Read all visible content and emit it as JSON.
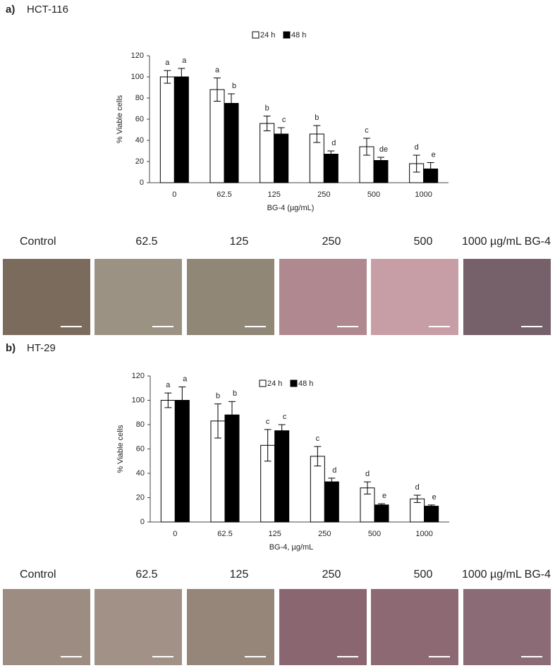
{
  "panels": [
    {
      "label": "a)",
      "title": "HCT-116",
      "captions": [
        "Control",
        "62.5",
        "125",
        "250",
        "500",
        "1000 µg/mL BG-4"
      ]
    },
    {
      "label": "b)",
      "title": "HT-29",
      "captions": [
        "Control",
        "62.5",
        "125",
        "250",
        "500",
        "1000 µg/mL BG-4"
      ]
    }
  ],
  "chart_data": [
    {
      "type": "bar",
      "x_label": "BG-4 (µg/mL)",
      "y_label": "% Viable cells",
      "categories": [
        "0",
        "62.5",
        "125",
        "250",
        "500",
        "1000"
      ],
      "ylim": [
        0,
        120
      ],
      "yticks": [
        0,
        20,
        40,
        60,
        80,
        100,
        120
      ],
      "series": [
        {
          "name": "24 h",
          "color": "#ffffff",
          "values": [
            100,
            88,
            56,
            46,
            34,
            18
          ],
          "errors": [
            6,
            11,
            7,
            8,
            8,
            8
          ],
          "letters": [
            "a",
            "a",
            "b",
            "b",
            "c",
            "d"
          ]
        },
        {
          "name": "48 h",
          "color": "#000000",
          "values": [
            100,
            75,
            46,
            27,
            21,
            13
          ],
          "errors": [
            8,
            9,
            6,
            3,
            3,
            6
          ],
          "letters": [
            "a",
            "b",
            "c",
            "d",
            "de",
            "e"
          ]
        }
      ]
    },
    {
      "type": "bar",
      "x_label": "BG-4, µg/mL",
      "y_label": "% Viable cells",
      "categories": [
        "0",
        "62.5",
        "125",
        "250",
        "500",
        "1000"
      ],
      "ylim": [
        0,
        120
      ],
      "yticks": [
        0,
        20,
        40,
        60,
        80,
        100,
        120
      ],
      "series": [
        {
          "name": "24 h",
          "color": "#ffffff",
          "values": [
            100,
            83,
            63,
            54,
            28,
            19
          ],
          "errors": [
            6,
            14,
            13,
            8,
            5,
            3
          ],
          "letters": [
            "a",
            "b",
            "c",
            "c",
            "d",
            "d"
          ]
        },
        {
          "name": "48 h",
          "color": "#000000",
          "values": [
            100,
            88,
            75,
            33,
            14,
            13
          ],
          "errors": [
            11,
            11,
            5,
            3,
            1,
            1
          ],
          "letters": [
            "a",
            "b",
            "c",
            "d",
            "e",
            "e"
          ]
        }
      ]
    }
  ]
}
